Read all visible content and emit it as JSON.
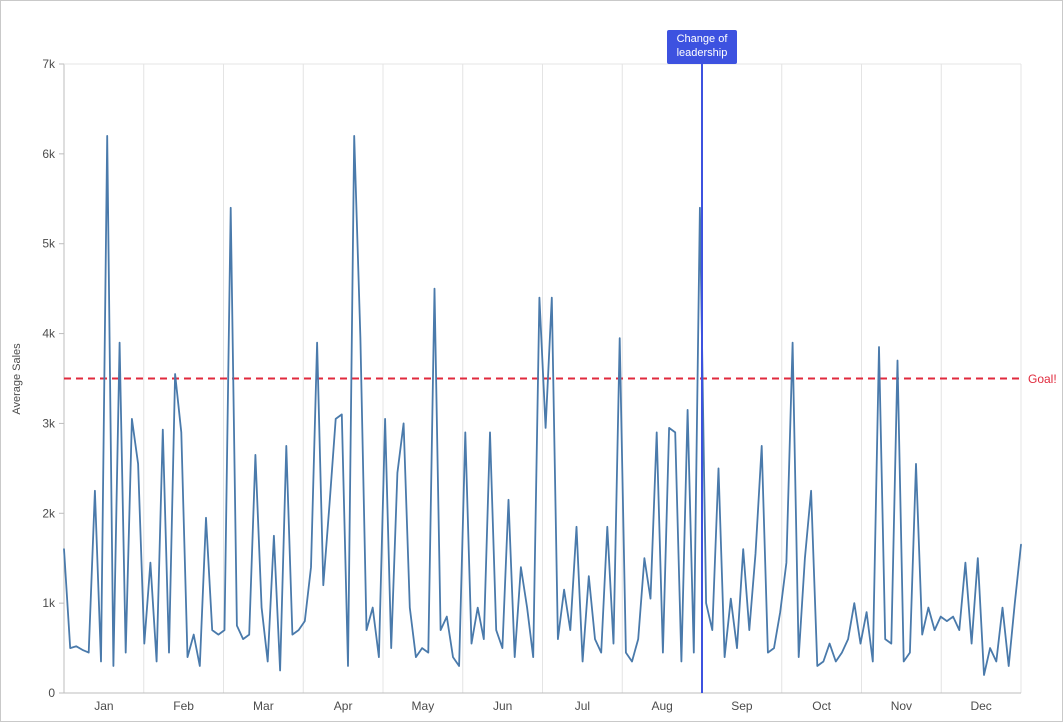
{
  "chart_data": {
    "type": "line",
    "title": "",
    "ylabel": "Average Sales",
    "xlabel": "",
    "ylim": [
      0,
      7000
    ],
    "yticks": [
      {
        "value": 0,
        "label": "0"
      },
      {
        "value": 1000,
        "label": "1k"
      },
      {
        "value": 2000,
        "label": "2k"
      },
      {
        "value": 3000,
        "label": "3k"
      },
      {
        "value": 4000,
        "label": "4k"
      },
      {
        "value": 5000,
        "label": "5k"
      },
      {
        "value": 6000,
        "label": "6k"
      },
      {
        "value": 7000,
        "label": "7k"
      }
    ],
    "x_categories": [
      "Jan",
      "Feb",
      "Mar",
      "Apr",
      "May",
      "Jun",
      "Jul",
      "Aug",
      "Sep",
      "Oct",
      "Nov",
      "Dec"
    ],
    "points_per_month": 13,
    "series": [
      {
        "name": "Average Sales",
        "color": "#4a7aab",
        "values": [
          1600,
          500,
          520,
          480,
          450,
          2250,
          350,
          6200,
          300,
          3900,
          450,
          3050,
          2550,
          550,
          1450,
          350,
          2930,
          450,
          3550,
          2900,
          400,
          650,
          300,
          1950,
          700,
          650,
          700,
          5400,
          750,
          600,
          650,
          2650,
          950,
          350,
          1750,
          250,
          2750,
          650,
          700,
          800,
          1400,
          3900,
          1200,
          2100,
          3050,
          3100,
          300,
          6200,
          3950,
          700,
          950,
          400,
          3050,
          500,
          2450,
          3000,
          950,
          400,
          500,
          450,
          4500,
          700,
          850,
          400,
          300,
          2900,
          550,
          950,
          600,
          2900,
          700,
          500,
          2150,
          400,
          1400,
          950,
          400,
          4400,
          2950,
          4400,
          600,
          1150,
          700,
          1850,
          350,
          1300,
          600,
          450,
          1850,
          550,
          3950,
          450,
          350,
          600,
          1500,
          1050,
          2900,
          450,
          2950,
          2900,
          350,
          3150,
          450,
          5400,
          1000,
          700,
          2500,
          400,
          1050,
          500,
          1600,
          700,
          1550,
          2750,
          450,
          500,
          900,
          1450,
          3900,
          400,
          1500,
          2250,
          300,
          350,
          550,
          350,
          450,
          600,
          1000,
          550,
          900,
          350,
          3850,
          600,
          550,
          3700,
          350,
          450,
          2550,
          650,
          950,
          700,
          850,
          800,
          850,
          700,
          1450,
          550,
          1500,
          200,
          500,
          350,
          950,
          300,
          1000,
          1650
        ]
      }
    ],
    "annotations": {
      "goal": {
        "value": 3500,
        "label": "Goal!",
        "color": "#e02a3d",
        "line_style": "dashed"
      },
      "event": {
        "month_index": 8,
        "month": "Sep",
        "label": "Change of leadership",
        "color": "#3d52e0"
      }
    },
    "grid": {
      "vertical": true,
      "horizontal": false
    },
    "legend_position": "none"
  },
  "colors": {
    "background": "#ffffff",
    "grid": "#e4e4e4",
    "axis": "#bdbdbd",
    "text": "#4c4c4c"
  }
}
